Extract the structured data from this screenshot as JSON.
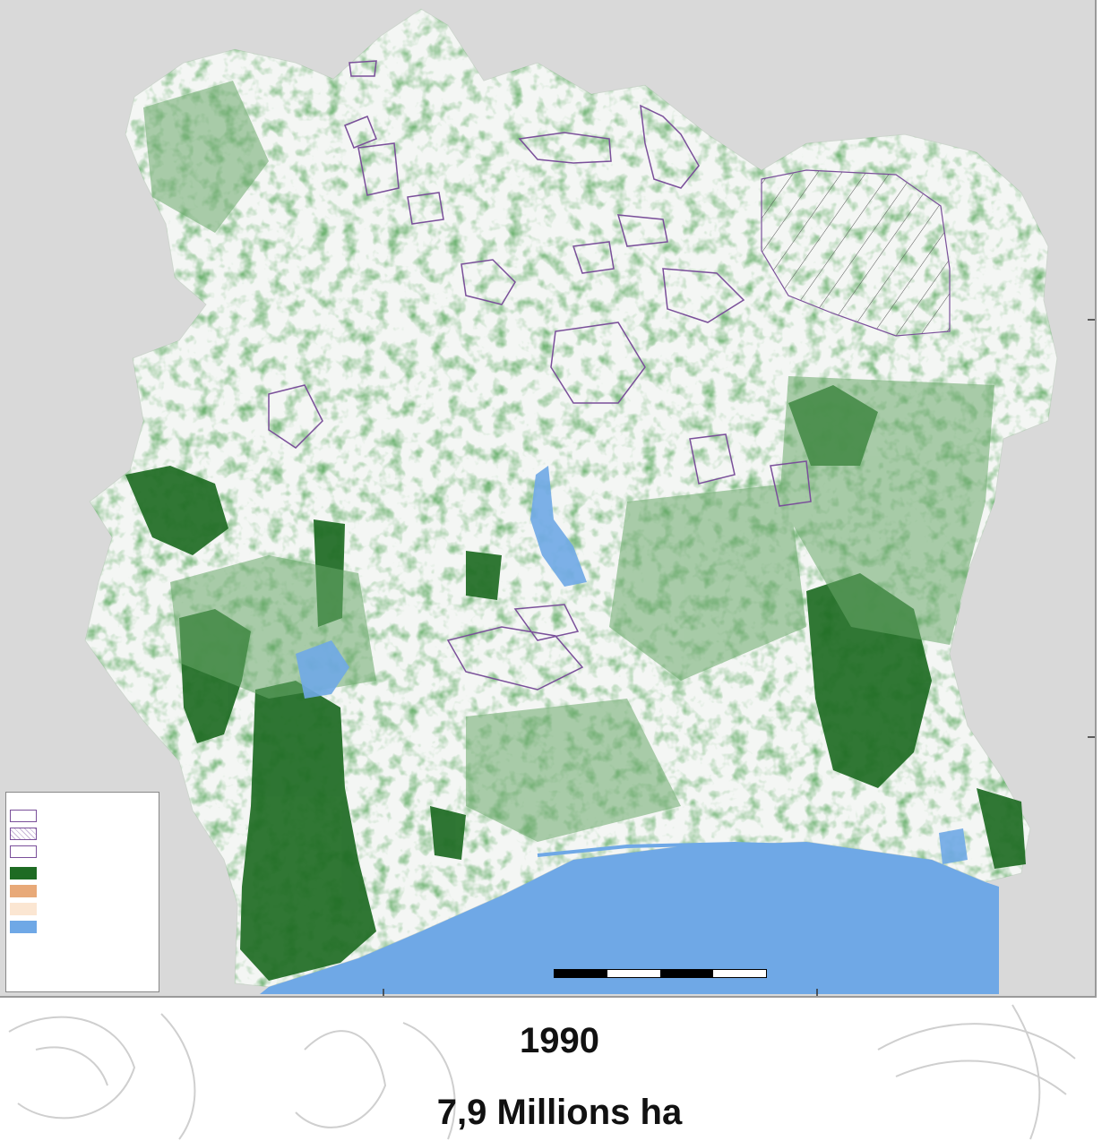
{
  "map": {
    "year": "1990",
    "area_caption": "7,9 Millions ha",
    "colors": {
      "frame_background": "#d9d9d9",
      "land": "#f4f6f4",
      "forest_dense": "#1e6b23",
      "forest_light": "#6aa86a",
      "water": "#6fa8e6",
      "protected_area_outline": "#7a4f9a"
    }
  }
}
